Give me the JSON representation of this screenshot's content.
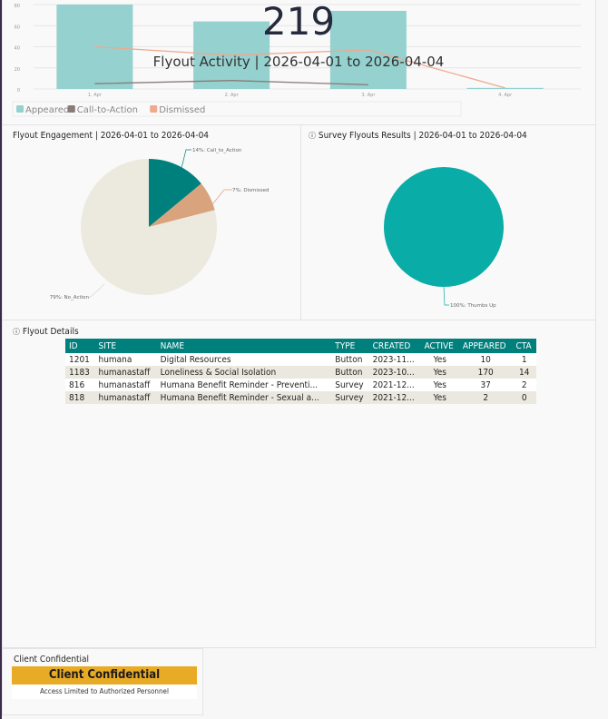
{
  "activity": {
    "kpi": "219",
    "title": "Flyout Activity | 2026-04-01 to 2026-04-04"
  },
  "chart_data": [
    {
      "type": "bar",
      "title": "Flyout Activity | 2026-04-01 to 2026-04-04",
      "categories": [
        "1. Apr",
        "2. Apr",
        "3. Apr",
        "4. Apr"
      ],
      "yticks": [
        "0",
        "20",
        "40",
        "60",
        "80"
      ],
      "ylim": [
        0,
        80
      ],
      "series": [
        {
          "name": "Appeared",
          "kind": "bar",
          "color": "#94d1cf",
          "values": [
            80,
            64,
            74,
            1
          ]
        },
        {
          "name": "Call-to-Action",
          "kind": "line",
          "color": "#8b7a7a",
          "values": [
            5,
            8,
            4,
            null
          ]
        },
        {
          "name": "Dismissed",
          "kind": "line",
          "color": "#f0a88f",
          "values": [
            40,
            32,
            37,
            1
          ]
        }
      ],
      "legend": "bottom-left"
    },
    {
      "type": "pie",
      "title": "Flyout Engagement | 2026-04-01 to 2026-04-04",
      "slices": [
        {
          "label": "14%: Call_to_Action",
          "value": 14,
          "color": "#00807d"
        },
        {
          "label": "7%: Dismissed",
          "value": 7,
          "color": "#d9a37e"
        },
        {
          "label": "79%: No_Action",
          "value": 79,
          "color": "#ece9df"
        }
      ]
    },
    {
      "type": "pie",
      "title": "Survey Flyouts Results | 2026-04-01 to 2026-04-04",
      "slices": [
        {
          "label": "100%: Thumbs Up",
          "value": 100,
          "color": "#0aaca7"
        }
      ]
    }
  ],
  "details": {
    "title": "Flyout Details",
    "columns": [
      "ID",
      "SITE",
      "NAME",
      "TYPE",
      "CREATED",
      "ACTIVE",
      "APPEARED",
      "CTA"
    ],
    "rows": [
      [
        "1201",
        "humana",
        "Digital Resources",
        "Button",
        "2023-11...",
        "Yes",
        "10",
        "1"
      ],
      [
        "1183",
        "humanastaff",
        "Loneliness & Social Isolation",
        "Button",
        "2023-10...",
        "Yes",
        "170",
        "14"
      ],
      [
        "816",
        "humanastaff",
        "Humana Benefit Reminder - Preventi...",
        "Survey",
        "2021-12...",
        "Yes",
        "37",
        "2"
      ],
      [
        "818",
        "humanastaff",
        "Humana Benefit Reminder - Sexual a...",
        "Survey",
        "2021-12...",
        "Yes",
        "2",
        "0"
      ]
    ]
  },
  "confidential": {
    "label": "Client Confidential",
    "banner": "Client Confidential",
    "sub": "Access Limited to Authorized Personnel"
  }
}
